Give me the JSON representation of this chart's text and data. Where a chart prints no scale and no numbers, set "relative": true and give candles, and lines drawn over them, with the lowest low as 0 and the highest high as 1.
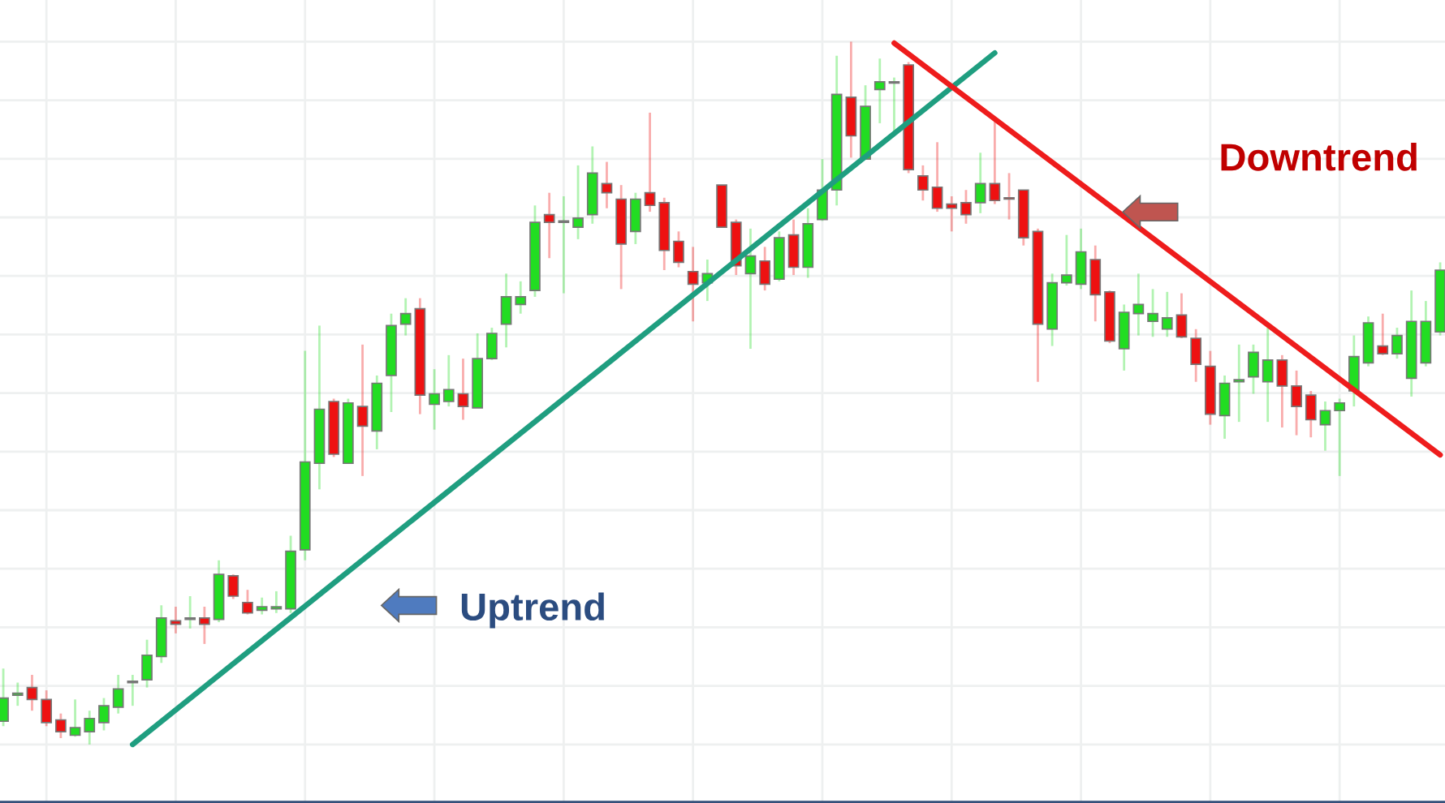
{
  "chart_data": {
    "type": "candlestick",
    "relative": true,
    "grid": true,
    "categories": [
      null,
      null,
      null,
      null,
      null,
      null,
      null,
      null,
      null,
      null,
      null,
      null,
      null,
      null,
      null,
      null,
      null,
      null,
      null,
      null,
      null,
      null,
      null,
      null,
      null,
      null,
      null,
      null,
      null,
      null,
      null,
      null,
      null,
      null,
      null,
      null,
      null,
      null,
      null,
      null,
      null,
      null,
      null,
      null,
      null,
      null,
      null,
      null,
      null,
      null,
      null,
      null,
      null,
      null,
      null,
      null,
      null,
      null,
      null,
      null,
      null,
      null,
      null,
      null,
      null,
      null,
      null,
      null,
      null,
      null,
      null,
      null,
      null,
      null,
      null,
      null,
      null,
      null,
      null,
      null,
      null,
      null,
      null,
      null,
      null,
      null,
      null,
      null,
      null,
      null,
      null,
      null,
      null,
      null,
      null,
      null,
      null,
      null,
      null,
      null,
      null
    ],
    "ohlc": [
      [
        0.033,
        0.108,
        0.026,
        0.066
      ],
      [
        0.07,
        0.088,
        0.055,
        0.073
      ],
      [
        0.081,
        0.099,
        0.048,
        0.064
      ],
      [
        0.064,
        0.077,
        0.026,
        0.031
      ],
      [
        0.035,
        0.044,
        0.009,
        0.018
      ],
      [
        0.013,
        0.064,
        0.011,
        0.024
      ],
      [
        0.018,
        0.048,
        0.0,
        0.037
      ],
      [
        0.031,
        0.066,
        0.02,
        0.055
      ],
      [
        0.053,
        0.099,
        0.044,
        0.079
      ],
      [
        0.088,
        0.099,
        0.055,
        0.09
      ],
      [
        0.092,
        0.149,
        0.081,
        0.127
      ],
      [
        0.125,
        0.198,
        0.116,
        0.18
      ],
      [
        0.176,
        0.196,
        0.158,
        0.171
      ],
      [
        0.178,
        0.211,
        0.165,
        0.18
      ],
      [
        0.18,
        0.196,
        0.143,
        0.171
      ],
      [
        0.178,
        0.262,
        0.174,
        0.242
      ],
      [
        0.24,
        0.242,
        0.207,
        0.211
      ],
      [
        0.202,
        0.22,
        0.185,
        0.187
      ],
      [
        0.191,
        0.209,
        0.185,
        0.196
      ],
      [
        0.193,
        0.218,
        0.187,
        0.196
      ],
      [
        0.193,
        0.297,
        0.187,
        0.275
      ],
      [
        0.277,
        0.56,
        0.262,
        0.402
      ],
      [
        0.4,
        0.596,
        0.363,
        0.477
      ],
      [
        0.488,
        0.492,
        0.409,
        0.413
      ],
      [
        0.4,
        0.492,
        0.4,
        0.486
      ],
      [
        0.481,
        0.569,
        0.382,
        0.453
      ],
      [
        0.446,
        0.525,
        0.42,
        0.514
      ],
      [
        0.525,
        0.613,
        0.473,
        0.596
      ],
      [
        0.598,
        0.635,
        0.582,
        0.613
      ],
      [
        0.62,
        0.635,
        0.47,
        0.497
      ],
      [
        0.484,
        0.534,
        0.448,
        0.499
      ],
      [
        0.488,
        0.554,
        0.481,
        0.505
      ],
      [
        0.499,
        0.549,
        0.462,
        0.481
      ],
      [
        0.479,
        0.585,
        0.479,
        0.549
      ],
      [
        0.549,
        0.593,
        0.547,
        0.585
      ],
      [
        0.598,
        0.67,
        0.565,
        0.637
      ],
      [
        0.626,
        0.659,
        0.613,
        0.637
      ],
      [
        0.646,
        0.767,
        0.637,
        0.743
      ],
      [
        0.754,
        0.785,
        0.692,
        0.743
      ],
      [
        0.743,
        0.78,
        0.642,
        0.745
      ],
      [
        0.736,
        0.824,
        0.719,
        0.749
      ],
      [
        0.754,
        0.851,
        0.741,
        0.813
      ],
      [
        0.798,
        0.829,
        0.763,
        0.785
      ],
      [
        0.776,
        0.796,
        0.648,
        0.712
      ],
      [
        0.73,
        0.785,
        0.712,
        0.776
      ],
      [
        0.785,
        0.899,
        0.758,
        0.767
      ],
      [
        0.771,
        0.778,
        0.675,
        0.703
      ],
      [
        0.716,
        0.73,
        0.679,
        0.686
      ],
      [
        0.673,
        0.708,
        0.602,
        0.655
      ],
      [
        0.657,
        0.69,
        0.631,
        0.67
      ],
      [
        0.796,
        0.796,
        0.736,
        0.736
      ],
      [
        0.743,
        0.747,
        0.668,
        0.681
      ],
      [
        0.67,
        0.734,
        0.563,
        0.695
      ],
      [
        0.688,
        0.708,
        0.646,
        0.655
      ],
      [
        0.662,
        0.73,
        0.659,
        0.721
      ],
      [
        0.725,
        0.747,
        0.668,
        0.679
      ],
      [
        0.679,
        0.763,
        0.664,
        0.741
      ],
      [
        0.747,
        0.833,
        0.745,
        0.789
      ],
      [
        0.789,
        0.98,
        0.767,
        0.925
      ],
      [
        0.921,
        1.0,
        0.835,
        0.866
      ],
      [
        0.833,
        0.938,
        0.833,
        0.908
      ],
      [
        0.932,
        0.976,
        0.884,
        0.943
      ],
      [
        0.941,
        0.949,
        0.868,
        0.943
      ],
      [
        0.967,
        0.971,
        0.813,
        0.818
      ],
      [
        0.809,
        0.824,
        0.774,
        0.789
      ],
      [
        0.793,
        0.857,
        0.758,
        0.763
      ],
      [
        0.769,
        0.78,
        0.73,
        0.763
      ],
      [
        0.771,
        0.789,
        0.741,
        0.754
      ],
      [
        0.771,
        0.842,
        0.756,
        0.798
      ],
      [
        0.798,
        0.888,
        0.769,
        0.774
      ],
      [
        0.778,
        0.813,
        0.747,
        0.776
      ],
      [
        0.789,
        0.789,
        0.71,
        0.721
      ],
      [
        0.73,
        0.734,
        0.516,
        0.598
      ],
      [
        0.591,
        0.67,
        0.567,
        0.657
      ],
      [
        0.657,
        0.725,
        0.653,
        0.668
      ],
      [
        0.655,
        0.734,
        0.648,
        0.701
      ],
      [
        0.69,
        0.71,
        0.602,
        0.64
      ],
      [
        0.644,
        0.646,
        0.571,
        0.574
      ],
      [
        0.563,
        0.626,
        0.532,
        0.615
      ],
      [
        0.613,
        0.67,
        0.582,
        0.626
      ],
      [
        0.602,
        0.648,
        0.58,
        0.613
      ],
      [
        0.591,
        0.644,
        0.58,
        0.607
      ],
      [
        0.611,
        0.642,
        0.578,
        0.58
      ],
      [
        0.578,
        0.591,
        0.516,
        0.541
      ],
      [
        0.538,
        0.56,
        0.455,
        0.47
      ],
      [
        0.468,
        0.525,
        0.435,
        0.514
      ],
      [
        0.516,
        0.569,
        0.459,
        0.519
      ],
      [
        0.523,
        0.569,
        0.499,
        0.558
      ],
      [
        0.516,
        0.593,
        0.459,
        0.547
      ],
      [
        0.547,
        0.554,
        0.451,
        0.51
      ],
      [
        0.51,
        0.532,
        0.44,
        0.481
      ],
      [
        0.497,
        0.503,
        0.437,
        0.462
      ],
      [
        0.455,
        0.488,
        0.418,
        0.475
      ],
      [
        0.475,
        0.492,
        0.382,
        0.486
      ],
      [
        0.503,
        0.582,
        0.481,
        0.552
      ],
      [
        0.543,
        0.609,
        0.538,
        0.6
      ],
      [
        0.567,
        0.613,
        0.554,
        0.556
      ],
      [
        0.556,
        0.593,
        0.549,
        0.582
      ],
      [
        0.521,
        0.646,
        0.495,
        0.602
      ],
      [
        0.543,
        0.631,
        0.538,
        0.602
      ],
      [
        0.587,
        0.686,
        0.582,
        0.675
      ]
    ],
    "colors": [
      "#22dd22",
      "#22dd22",
      "#ee1111",
      "#ee1111",
      "#ee1111",
      "#22dd22",
      "#22dd22",
      "#22dd22",
      "#22dd22",
      "#22dd22",
      "#22dd22",
      "#22dd22",
      "#ee1111",
      "#22dd22",
      "#ee1111",
      "#22dd22",
      "#ee1111",
      "#ee1111",
      "#22dd22",
      "#22dd22",
      "#22dd22",
      "#22dd22",
      "#22dd22",
      "#ee1111",
      "#22dd22",
      "#ee1111",
      "#22dd22",
      "#22dd22",
      "#22dd22",
      "#ee1111",
      "#22dd22",
      "#22dd22",
      "#ee1111",
      "#22dd22",
      "#22dd22",
      "#22dd22",
      "#22dd22",
      "#22dd22",
      "#ee1111",
      "#22dd22",
      "#22dd22",
      "#22dd22",
      "#ee1111",
      "#ee1111",
      "#22dd22",
      "#ee1111",
      "#ee1111",
      "#ee1111",
      "#ee1111",
      "#22dd22",
      "#ee1111",
      "#ee1111",
      "#22dd22",
      "#ee1111",
      "#22dd22",
      "#ee1111",
      "#22dd22",
      "#22dd22",
      "#22dd22",
      "#ee1111",
      "#22dd22",
      "#22dd22",
      "#22dd22",
      "#ee1111",
      "#ee1111",
      "#ee1111",
      "#ee1111",
      "#ee1111",
      "#22dd22",
      "#ee1111",
      "#ee1111",
      "#ee1111",
      "#ee1111",
      "#22dd22",
      "#22dd22",
      "#22dd22",
      "#ee1111",
      "#ee1111",
      "#22dd22",
      "#22dd22",
      "#22dd22",
      "#22dd22",
      "#ee1111",
      "#ee1111",
      "#ee1111",
      "#22dd22",
      "#22dd22",
      "#22dd22",
      "#22dd22",
      "#ee1111",
      "#ee1111",
      "#ee1111",
      "#22dd22",
      "#22dd22",
      "#22dd22",
      "#22dd22",
      "#ee1111",
      "#22dd22",
      "#22dd22",
      "#22dd22",
      "#22dd22"
    ],
    "series": [
      {
        "type": "line",
        "color": "#1f9e80",
        "values": [
          null,
          null,
          null,
          null,
          null,
          null,
          null,
          null,
          null,
          0.0,
          null,
          null,
          null,
          null,
          null,
          null,
          null,
          null,
          null,
          null,
          null,
          null,
          null,
          null,
          null,
          null,
          null,
          null,
          null,
          null,
          null,
          null,
          null,
          null,
          null,
          null,
          null,
          null,
          null,
          null,
          null,
          null,
          null,
          null,
          null,
          null,
          null,
          null,
          null,
          null,
          null,
          null,
          null,
          null,
          null,
          null,
          null,
          null,
          null,
          null,
          null,
          null,
          null,
          null,
          null,
          null,
          null,
          null,
          null,
          0.984,
          null,
          null,
          null,
          null,
          null,
          null,
          null,
          null,
          null,
          null,
          null,
          null,
          null,
          null,
          null,
          null,
          null,
          null,
          null,
          null,
          null,
          null,
          null,
          null,
          null,
          null,
          null,
          null,
          null,
          null,
          null
        ]
      },
      {
        "type": "line",
        "color": "#ee1c1c",
        "values": [
          null,
          null,
          null,
          null,
          null,
          null,
          null,
          null,
          null,
          null,
          null,
          null,
          null,
          null,
          null,
          null,
          null,
          null,
          null,
          null,
          null,
          null,
          null,
          null,
          null,
          null,
          null,
          null,
          null,
          null,
          null,
          null,
          null,
          null,
          null,
          null,
          null,
          null,
          null,
          null,
          null,
          null,
          null,
          null,
          null,
          null,
          null,
          null,
          null,
          null,
          null,
          null,
          null,
          null,
          null,
          null,
          null,
          null,
          null,
          null,
          null,
          null,
          0.998,
          null,
          null,
          null,
          null,
          null,
          null,
          null,
          null,
          null,
          null,
          null,
          null,
          null,
          null,
          null,
          null,
          null,
          null,
          null,
          null,
          null,
          null,
          null,
          null,
          null,
          null,
          null,
          null,
          null,
          null,
          null,
          null,
          null,
          null,
          null,
          null,
          null,
          0.412
        ]
      }
    ],
    "annotations": [
      "Uptrend",
      "Downtrend"
    ]
  }
}
